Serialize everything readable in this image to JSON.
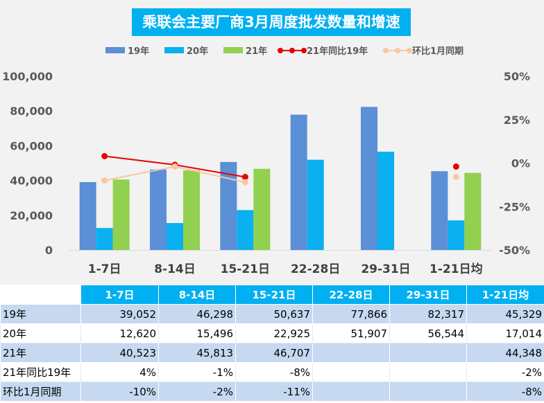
{
  "chart_data": {
    "type": "bar",
    "title": "乘联会主要厂商3月周度批发数量和增速",
    "categories": [
      "1-7日",
      "8-14日",
      "15-21日",
      "22-28日",
      "29-31日",
      "1-21日均"
    ],
    "series": [
      {
        "name": "19年",
        "kind": "bar",
        "axis": "left",
        "color": "#5b8fd6",
        "values": [
          39052,
          46298,
          50637,
          77866,
          82317,
          45329
        ]
      },
      {
        "name": "20年",
        "kind": "bar",
        "axis": "left",
        "color": "#0ab0ef",
        "values": [
          12620,
          15496,
          22925,
          51907,
          56544,
          17014
        ]
      },
      {
        "name": "21年",
        "kind": "bar",
        "axis": "left",
        "color": "#92d050",
        "values": [
          40523,
          45813,
          46707,
          null,
          null,
          44348
        ]
      },
      {
        "name": "21年同比19年",
        "kind": "line",
        "axis": "right",
        "color": "#e60000",
        "values": [
          4,
          -1,
          -8,
          null,
          null,
          -2
        ]
      },
      {
        "name": "环比1月同期",
        "kind": "line",
        "axis": "right",
        "color": "#f8c8a0",
        "values": [
          -10,
          -2,
          -11,
          null,
          null,
          -8
        ]
      }
    ],
    "y_left": {
      "min": 0,
      "max": 100000,
      "ticks": [
        "0",
        "20,000",
        "40,000",
        "60,000",
        "80,000",
        "100,000"
      ]
    },
    "y_right": {
      "min": -50,
      "max": 50,
      "unit": "%",
      "ticks": [
        "-50%",
        "-25%",
        "0%",
        "25%",
        "50%"
      ]
    },
    "legend_position": "top",
    "grid": false
  },
  "table": {
    "headers": [
      "1-7日",
      "8-14日",
      "15-21日",
      "22-28日",
      "29-31日",
      "1-21日均"
    ],
    "rows": [
      {
        "label": "19年",
        "cells": [
          "39,052",
          "46,298",
          "50,637",
          "77,866",
          "82,317",
          "45,329"
        ]
      },
      {
        "label": "20年",
        "cells": [
          "12,620",
          "15,496",
          "22,925",
          "51,907",
          "56,544",
          "17,014"
        ]
      },
      {
        "label": "21年",
        "cells": [
          "40,523",
          "45,813",
          "46,707",
          "",
          "",
          "44,348"
        ]
      },
      {
        "label": "21年同比19年",
        "cells": [
          "4%",
          "-1%",
          "-8%",
          "",
          "",
          "-2%"
        ]
      },
      {
        "label": "环比1月同期",
        "cells": [
          "-10%",
          "-2%",
          "-11%",
          "",
          "",
          "-8%"
        ]
      }
    ]
  }
}
